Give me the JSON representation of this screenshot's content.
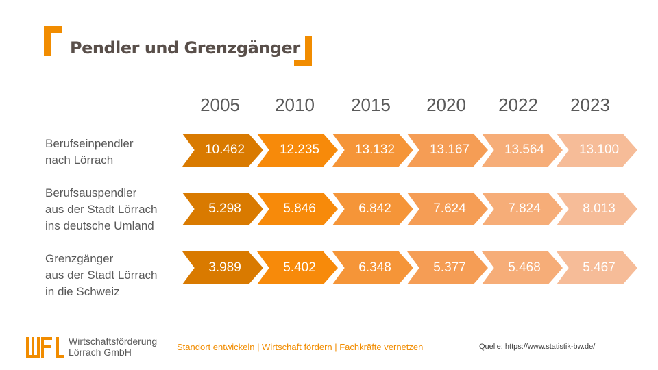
{
  "title": "Pendler und Grenzgänger",
  "chart_data": {
    "type": "table",
    "columns": [
      "2005",
      "2010",
      "2015",
      "2020",
      "2022",
      "2023"
    ],
    "rows": [
      {
        "label": "Berufseinpendler\nnach Lörrach",
        "values": [
          "10.462",
          "12.235",
          "13.132",
          "13.167",
          "13.564",
          "13.100"
        ]
      },
      {
        "label": "Berufsauspendler\naus der Stadt Lörrach\nins deutsche Umland",
        "values": [
          "5.298",
          "5.846",
          "6.842",
          "7.624",
          "7.824",
          "8.013"
        ]
      },
      {
        "label": "Grenzgänger\naus der Stadt Lörrach\nin die Schweiz",
        "values": [
          "3.989",
          "5.402",
          "6.348",
          "5.377",
          "5.468",
          "5.467"
        ]
      }
    ],
    "column_colors": [
      "#d97a00",
      "#f78a0a",
      "#f59538",
      "#f59d55",
      "#f6ad78",
      "#f6bc98"
    ]
  },
  "footer": {
    "company": "Wirtschaftsförderung\nLörrach GmbH",
    "slogan": "Standort  entwickeln  |  Wirtschaft fördern  |  Fachkräfte vernetzen",
    "source": "Quelle: https://www.statistik-bw.de/",
    "logo_text": "WFL",
    "accent_color": "#f18c00"
  }
}
